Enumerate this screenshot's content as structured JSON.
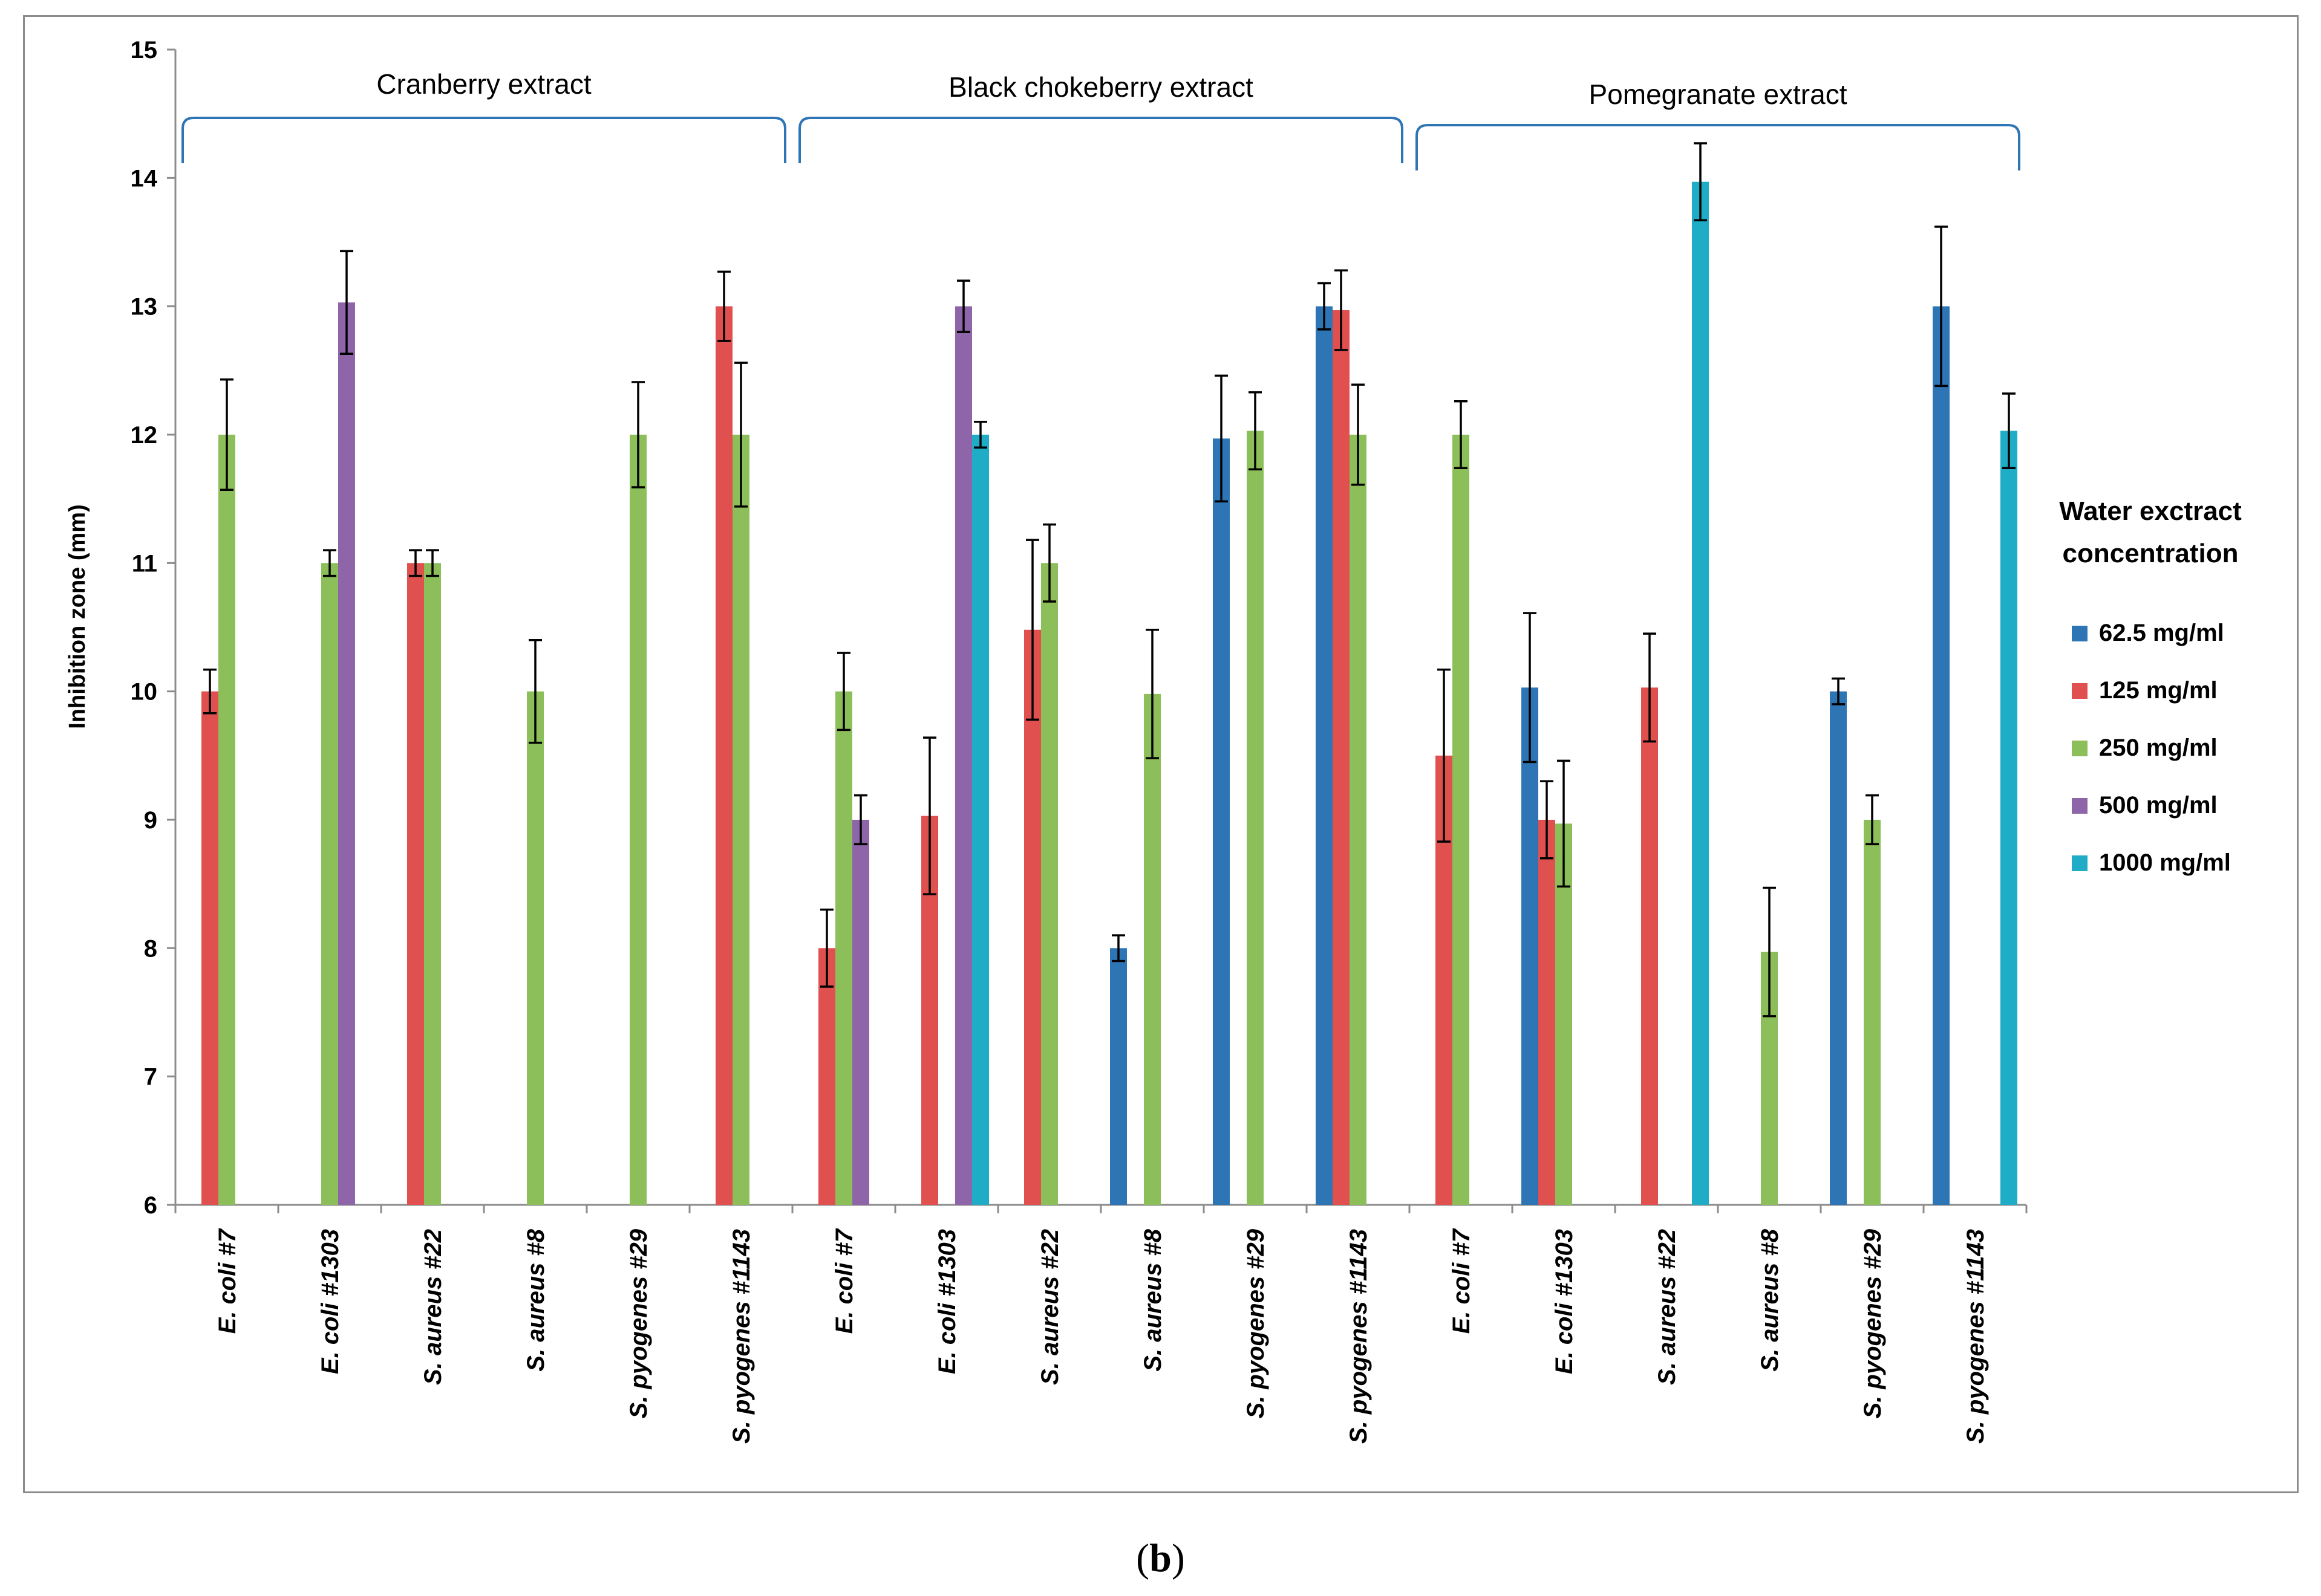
{
  "caption": {
    "open": "(",
    "letter": "b",
    "close": ")"
  },
  "chart_data": {
    "type": "bar",
    "ylabel": "Inhibition zone (mm)",
    "ylim": [
      6,
      15
    ],
    "yticks": [
      6,
      7,
      8,
      9,
      10,
      11,
      12,
      13,
      14,
      15
    ],
    "grid": false,
    "legend": {
      "title_lines": [
        "Water exctract",
        "concentration"
      ],
      "placement": "right"
    },
    "series": [
      {
        "name": "62.5 mg/ml",
        "color": "#2E75B6"
      },
      {
        "name": "125 mg/ml",
        "color": "#E0504F"
      },
      {
        "name": "250 mg/ml",
        "color": "#8CBF5A"
      },
      {
        "name": "500 mg/ml",
        "color": "#8E65A8"
      },
      {
        "name": "1000 mg/ml",
        "color": "#1FACC6"
      }
    ],
    "groups": [
      {
        "label": "Cranberry extract",
        "start": 0,
        "end": 5
      },
      {
        "label": "Black chokeberry extract",
        "start": 6,
        "end": 11
      },
      {
        "label": "Pomegranate extract",
        "start": 12,
        "end": 17
      }
    ],
    "categories": [
      "E. coli #7",
      "E. coli #1303",
      "S. aureus #22",
      "S. aureus #8",
      "S. pyogenes #29",
      "S. pyogenes #1143",
      "E. coli #7",
      "E. coli #1303",
      "S. aureus #22",
      "S. aureus #8",
      "S. pyogenes #29",
      "S. pyogenes #1143",
      "E. coli #7",
      "E. coli #1303",
      "S. aureus #22",
      "S. aureus #8",
      "S. pyogenes #29",
      "S. pyogenes #1143"
    ],
    "values": [
      [
        null,
        10.0,
        12.0,
        null,
        null
      ],
      [
        null,
        null,
        11.0,
        13.03,
        null
      ],
      [
        null,
        11.0,
        11.0,
        null,
        null
      ],
      [
        null,
        null,
        10.0,
        null,
        null
      ],
      [
        null,
        null,
        12.0,
        null,
        null
      ],
      [
        null,
        13.0,
        12.0,
        null,
        null
      ],
      [
        null,
        8.0,
        10.0,
        9.0,
        null
      ],
      [
        null,
        9.03,
        null,
        13.0,
        12.0
      ],
      [
        null,
        10.48,
        11.0,
        null,
        null
      ],
      [
        8.0,
        null,
        9.98,
        null,
        null
      ],
      [
        11.97,
        null,
        12.03,
        null,
        null
      ],
      [
        13.0,
        12.97,
        12.0,
        null,
        null
      ],
      [
        null,
        9.5,
        12.0,
        null,
        null
      ],
      [
        10.03,
        9.0,
        8.97,
        null,
        null
      ],
      [
        null,
        10.03,
        null,
        null,
        13.97
      ],
      [
        null,
        null,
        7.97,
        null,
        null
      ],
      [
        10.0,
        null,
        9.0,
        null,
        null
      ],
      [
        13.0,
        null,
        null,
        null,
        12.03
      ]
    ],
    "errors": [
      [
        null,
        0.17,
        0.43,
        null,
        null
      ],
      [
        null,
        null,
        0.1,
        0.4,
        null
      ],
      [
        null,
        0.1,
        0.1,
        null,
        null
      ],
      [
        null,
        null,
        0.4,
        null,
        null
      ],
      [
        null,
        null,
        0.41,
        null,
        null
      ],
      [
        null,
        0.27,
        0.56,
        null,
        null
      ],
      [
        null,
        0.3,
        0.3,
        0.19,
        null
      ],
      [
        null,
        0.61,
        null,
        0.2,
        0.1
      ],
      [
        null,
        0.7,
        0.3,
        null,
        null
      ],
      [
        0.1,
        null,
        0.5,
        null,
        null
      ],
      [
        0.49,
        null,
        0.3,
        null,
        null
      ],
      [
        0.18,
        0.31,
        0.39,
        null,
        null
      ],
      [
        null,
        0.67,
        0.26,
        null,
        null
      ],
      [
        0.58,
        0.3,
        0.49,
        null,
        null
      ],
      [
        null,
        0.42,
        null,
        null,
        0.3
      ],
      [
        null,
        null,
        0.5,
        null,
        null
      ],
      [
        0.1,
        null,
        0.19,
        null,
        null
      ],
      [
        0.62,
        null,
        null,
        null,
        0.29
      ]
    ]
  }
}
